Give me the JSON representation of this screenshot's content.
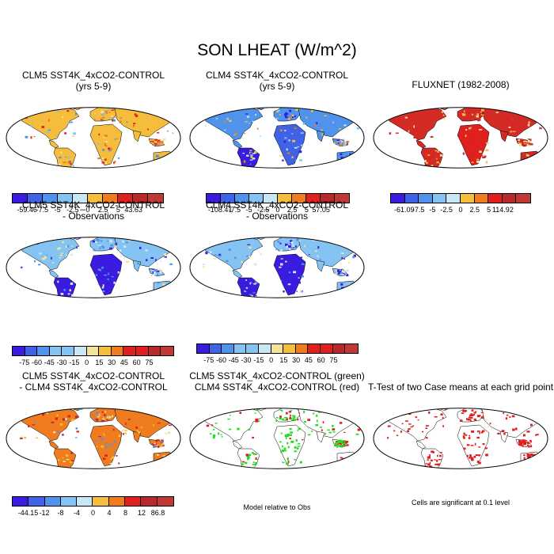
{
  "title": "SON LHEAT (W/m^2)",
  "palette_diverging": [
    "#3a1be0",
    "#3f62e6",
    "#4f93ec",
    "#85c3f2",
    "#c9e6f4",
    "#f5e29a",
    "#f5bd3b",
    "#ef7c1e",
    "#e01f1f",
    "#b8292b",
    "#bf3a35"
  ],
  "panels": [
    {
      "id": "p1",
      "title_lines": [
        "CLM5 SST4K_4xCO2-CONTROL",
        "(yrs 5-9)"
      ],
      "fill": "mixed-warm",
      "colorbar": {
        "ticks": [
          "-59.46",
          "-7.5",
          "-5",
          "-2.5",
          "0",
          "2.5",
          "5",
          "43.63"
        ],
        "cells": 10
      }
    },
    {
      "id": "p2",
      "title_lines": [
        "CLM4 SST4K_4xCO2-CONTROL",
        "(yrs 5-9)"
      ],
      "fill": "mixed-cool",
      "colorbar": {
        "ticks": [
          "-108.41",
          "-7.5",
          "-5",
          "-2.5",
          "0",
          "2.5",
          "5",
          "57.05"
        ],
        "cells": 10
      }
    },
    {
      "id": "p3",
      "title_lines": [
        "FLUXNET (1982-2008)"
      ],
      "fill": "red",
      "colorbar": {
        "ticks": [
          "-61.09",
          "-7.5",
          "-5",
          "-2.5",
          "0",
          "2.5",
          "5",
          "114.92"
        ],
        "cells": 10
      }
    },
    {
      "id": "p4",
      "title_lines": [
        "CLM5 SST4K_4xCO2-CONTROL",
        "- Observations"
      ],
      "fill": "blue",
      "colorbar": {
        "ticks": [
          "-75",
          "-60",
          "-45",
          "-30",
          "-15",
          "0",
          "15",
          "30",
          "45",
          "60",
          "75"
        ],
        "cells": 13
      }
    },
    {
      "id": "p5",
      "title_lines": [
        "CLM4 SST4K_4xCO2-CONTROL",
        "- Observations"
      ],
      "fill": "blue",
      "colorbar": {
        "ticks": [
          "-75",
          "-60",
          "-45",
          "-30",
          "-15",
          "0",
          "15",
          "30",
          "45",
          "60",
          "75"
        ],
        "cells": 13
      }
    },
    {
      "id": "p7",
      "title_lines": [
        "CLM5 SST4K_4xCO2-CONTROL",
        "- CLM4 SST4K_4xCO2-CONTROL"
      ],
      "fill": "warm",
      "colorbar": {
        "ticks": [
          "-44.15",
          "-12",
          "-8",
          "-4",
          "0",
          "4",
          "8",
          "12",
          "86.8"
        ],
        "cells": 10
      }
    },
    {
      "id": "p8",
      "title_lines": [
        "CLM5 SST4K_4xCO2-CONTROL (green)",
        "CLM4 SST4K_4xCO2-CONTROL (red)"
      ],
      "fill": "greenred",
      "note": "Model relative to Obs"
    },
    {
      "id": "p9",
      "title_lines": [
        "T-Test of two Case means at each grid point"
      ],
      "fill": "ttest",
      "note": "Cells are significant at 0.1 level"
    }
  ]
}
